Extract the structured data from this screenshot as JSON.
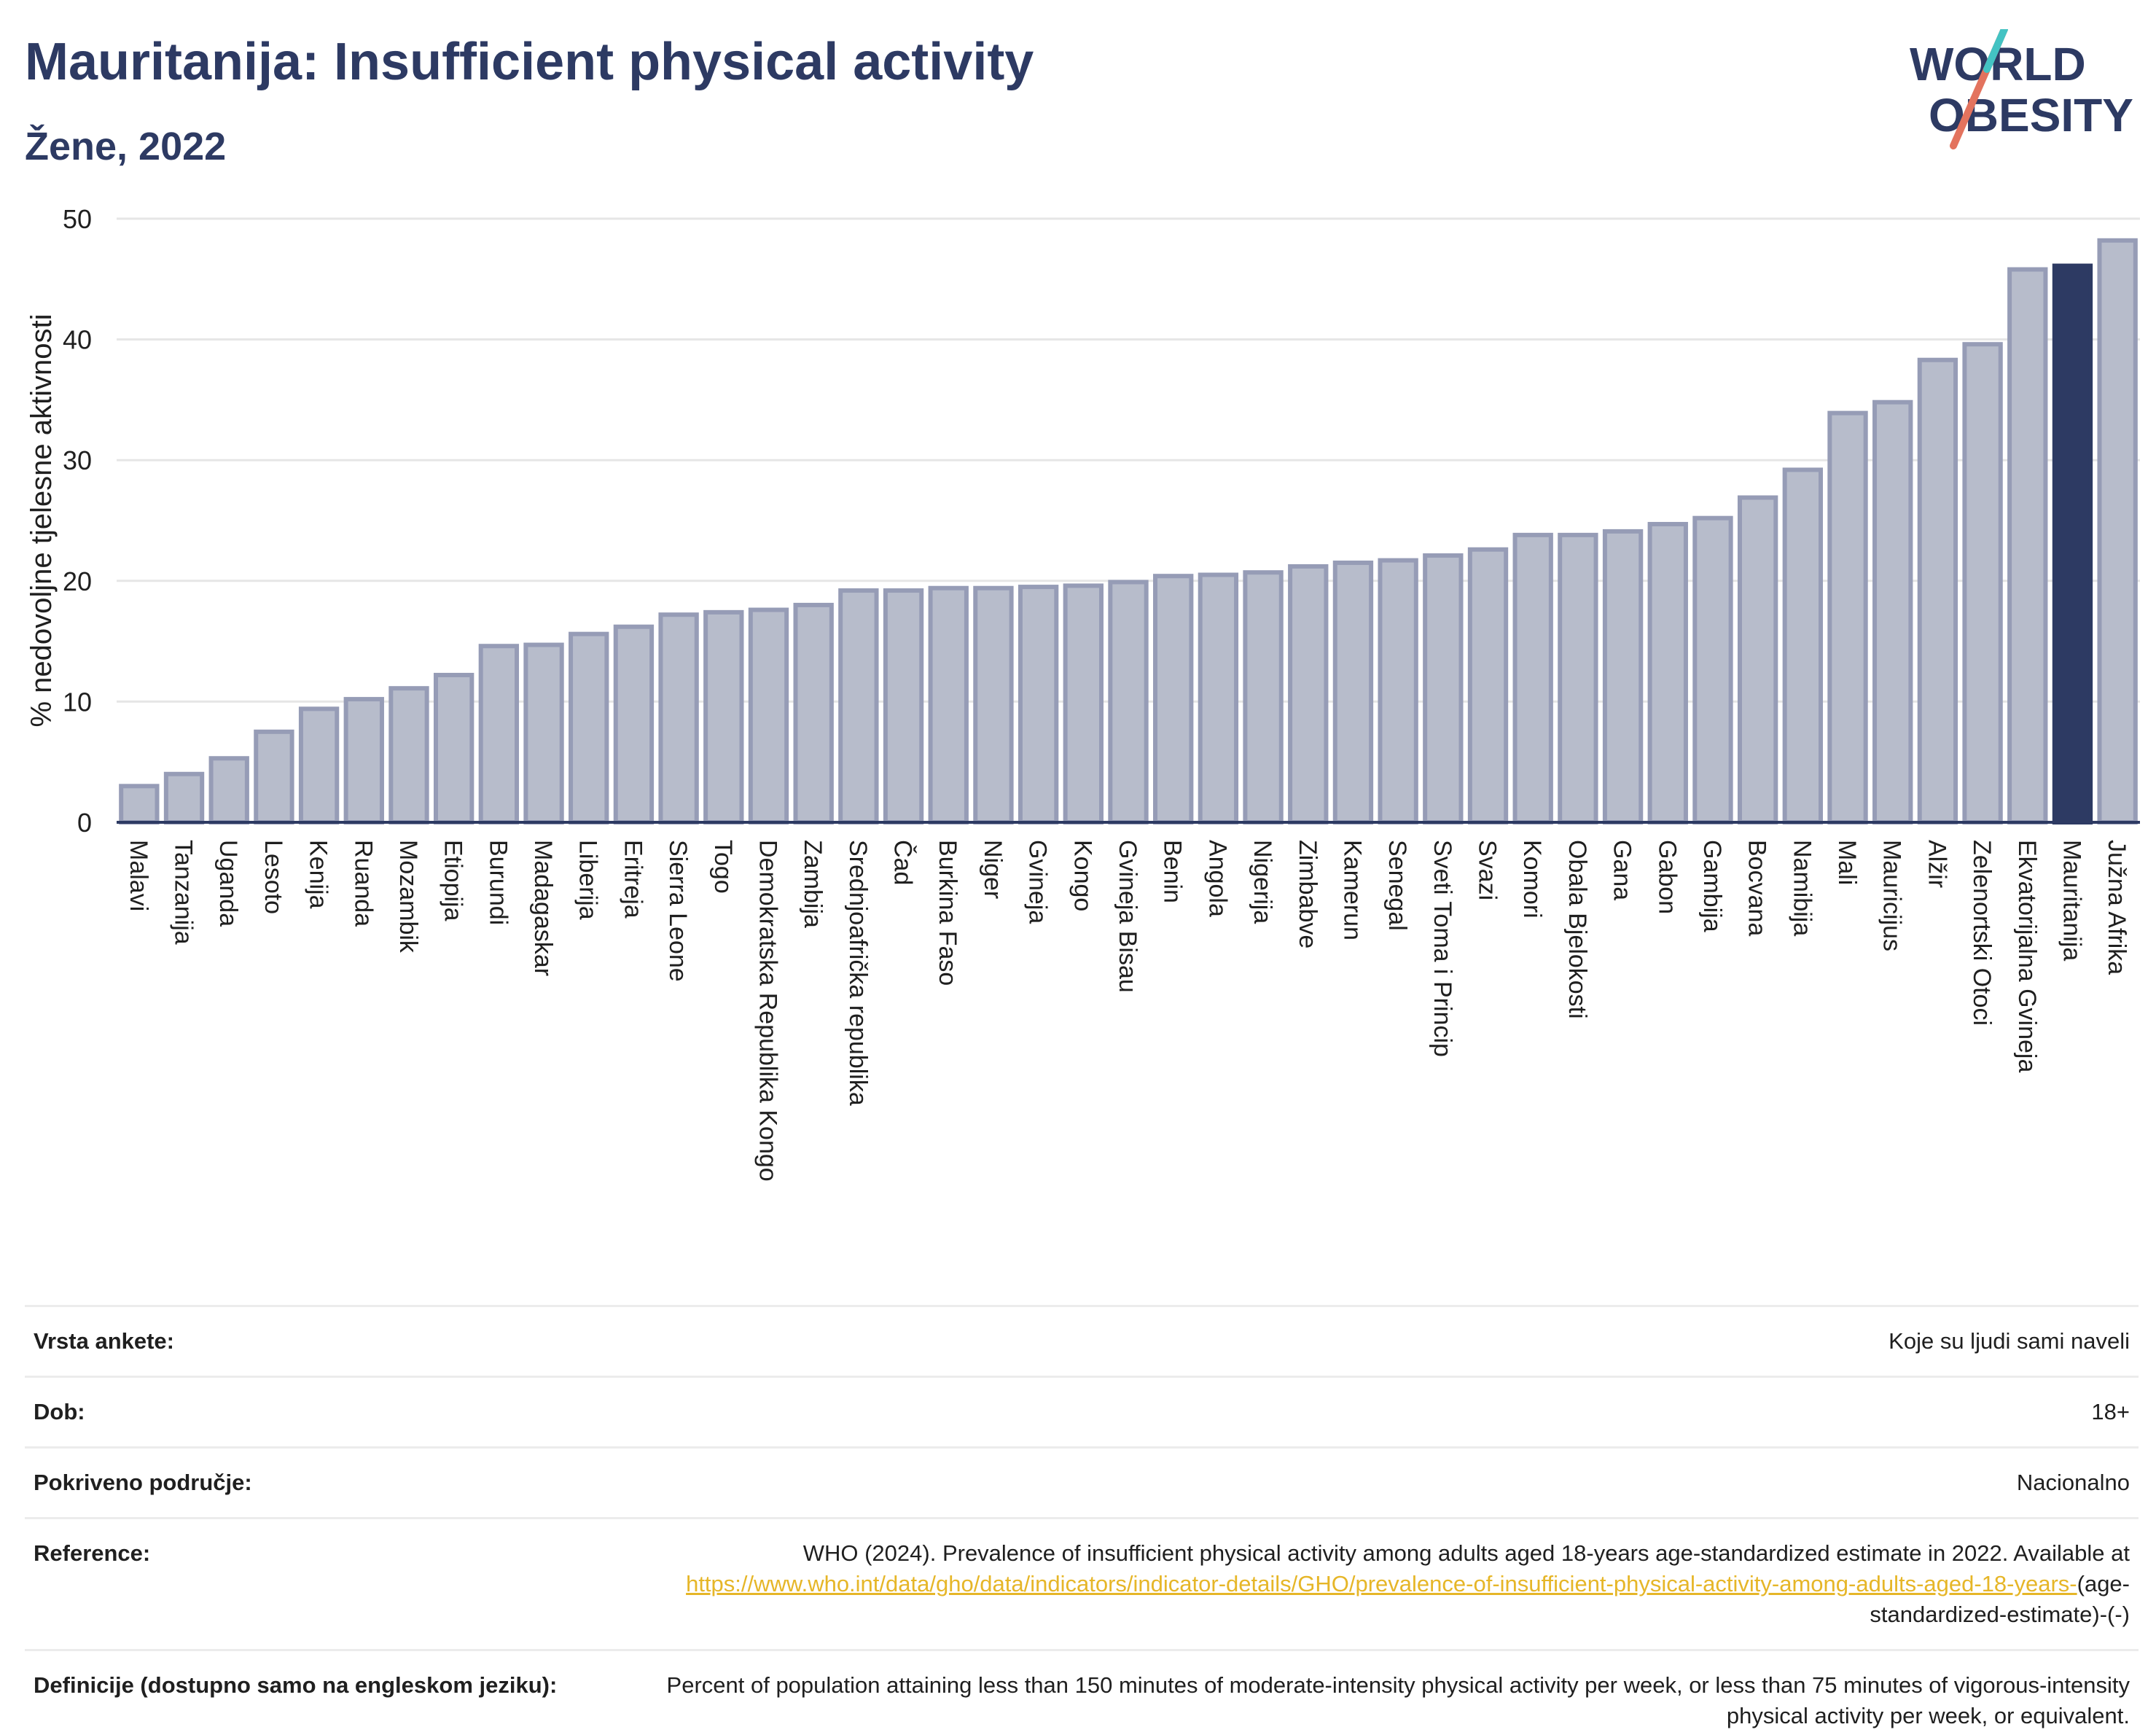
{
  "header": {
    "title": "Mauritanija: Insufficient physical activity",
    "subtitle": "Žene, 2022"
  },
  "logo": {
    "line1": "WORLD",
    "line2": "OBESITY"
  },
  "colors": {
    "bar": "#b7bccb",
    "bar_stroke": "#969cb6",
    "highlight": "#2d3a63",
    "grid": "#e6e6e6",
    "axis": "#2d3a63",
    "text": "#2d3a63",
    "logo_accent": "#e3735e",
    "logo_accent2": "#43c3c3"
  },
  "chart_data": {
    "type": "bar",
    "ylabel": "% nedovoljne tjelesne aktivnosti",
    "ylim": [
      0,
      50
    ],
    "yticks": [
      0,
      10,
      20,
      30,
      40,
      50
    ],
    "highlight": "Mauritanija",
    "categories": [
      "Malavi",
      "Tanzanija",
      "Uganda",
      "Lesoto",
      "Kenija",
      "Ruanda",
      "Mozambik",
      "Etiopija",
      "Burundi",
      "Madagaskar",
      "Liberija",
      "Eritreja",
      "Sierra Leone",
      "Togo",
      "Demokratska Republika Kongo",
      "Zambija",
      "Srednjoafrička republika",
      "Čad",
      "Burkina Faso",
      "Niger",
      "Gvineja",
      "Kongo",
      "Gvineja Bisau",
      "Benin",
      "Angola",
      "Nigerija",
      "Zimbabve",
      "Kamerun",
      "Senegal",
      "Sveti Toma i Princip",
      "Svazi",
      "Komori",
      "Obala Bjelokosti",
      "Gana",
      "Gabon",
      "Gambija",
      "Bocvana",
      "Namibija",
      "Mali",
      "Mauricijus",
      "Alžir",
      "Zelenortski Otoci",
      "Ekvatorijalna Gvineja",
      "Mauritanija",
      "Južna Afrika"
    ],
    "values": [
      3.0,
      4.0,
      5.3,
      7.5,
      9.4,
      10.2,
      11.1,
      12.2,
      14.6,
      14.7,
      15.6,
      16.2,
      17.2,
      17.4,
      17.6,
      18.0,
      19.2,
      19.2,
      19.4,
      19.4,
      19.5,
      19.6,
      19.9,
      20.4,
      20.5,
      20.7,
      21.2,
      21.5,
      21.7,
      22.1,
      22.6,
      23.8,
      23.8,
      24.1,
      24.7,
      25.2,
      26.9,
      29.2,
      33.9,
      34.8,
      38.3,
      39.6,
      45.8,
      46.1,
      48.2
    ],
    "grid": true
  },
  "info": {
    "survey_type": {
      "label": "Vrsta ankete:",
      "value": "Koje su ljudi sami naveli"
    },
    "age": {
      "label": "Dob:",
      "value": "18+"
    },
    "coverage": {
      "label": "Pokriveno područje:",
      "value": "Nacionalno"
    },
    "reference": {
      "label": "Reference:",
      "text": "WHO (2024). Prevalence of insufficient physical activity among adults aged 18-years age-standardized estimate in 2022. Available at",
      "link": "https://www.who.int/data/gho/data/indicators/indicator-details/GHO/prevalence-of-insufficient-physical-activity-among-adults-aged-18-years-",
      "suffix": "(age-standardized-estimate)-(-)"
    },
    "definitions": {
      "label": "Definicije (dostupno samo na engleskom jeziku):",
      "value": "Percent of population attaining less than 150 minutes of moderate-intensity physical activity per week, or less than 75 minutes of vigorous-intensity physical activity per week, or equivalent."
    }
  }
}
